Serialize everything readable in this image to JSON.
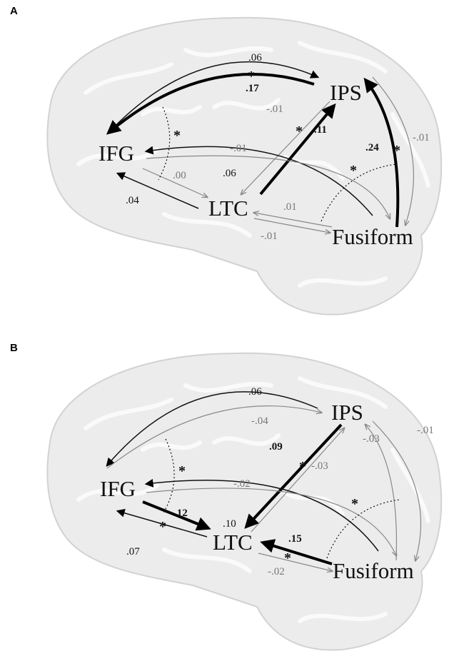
{
  "panels": [
    {
      "label": "A",
      "nodes": [
        "IPS",
        "IFG",
        "LTC",
        "Fusiform"
      ],
      "annotations": [
        ".06",
        "*",
        ".17",
        "-.01",
        "*",
        ".11",
        ".24",
        "*",
        "-.01",
        "*",
        "*",
        "-.01",
        ".06",
        ".00",
        ".04",
        ".01",
        "-.01"
      ]
    },
    {
      "label": "B",
      "nodes": [
        "IPS",
        "IFG",
        "LTC",
        "Fusiform"
      ],
      "annotations": [
        ".06",
        "-.04",
        "*",
        ".09",
        "*",
        "-.03",
        "-.03",
        "-.01",
        "-.02",
        "*",
        ".12",
        ".10",
        "*",
        ".07",
        ".15",
        "*",
        "-.02"
      ]
    }
  ]
}
